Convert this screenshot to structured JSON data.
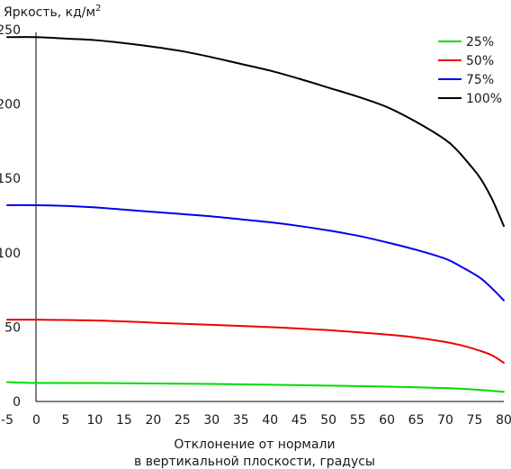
{
  "chart_data": {
    "type": "line",
    "ylabel": "Яркость, кд/м",
    "ylabel_superscript": "2",
    "xlabel_line1": "Отклонение от нормали",
    "xlabel_line2": "в вертикальной плоскости, градусы",
    "xlim": [
      -5,
      80
    ],
    "ylim": [
      0,
      250
    ],
    "x_ticks": [
      -5,
      0,
      5,
      10,
      15,
      20,
      25,
      30,
      35,
      40,
      45,
      50,
      55,
      60,
      65,
      70,
      75,
      80
    ],
    "y_ticks": [
      0,
      50,
      100,
      150,
      200,
      250
    ],
    "grid": false,
    "legend_position": "top-right",
    "series": [
      {
        "name": "25%",
        "color": "#00dd00",
        "x": [
          -5,
          0,
          10,
          20,
          30,
          40,
          50,
          60,
          70,
          75,
          80
        ],
        "y": [
          13,
          12.5,
          12.4,
          12.1,
          11.8,
          11.3,
          10.7,
          10,
          9,
          8,
          6.5
        ]
      },
      {
        "name": "50%",
        "color": "#ee0000",
        "x": [
          -5,
          0,
          10,
          20,
          30,
          40,
          45,
          50,
          55,
          60,
          65,
          70,
          73,
          76,
          78,
          80
        ],
        "y": [
          55,
          55,
          54.5,
          53,
          51.5,
          50,
          49,
          48,
          46.5,
          45,
          43,
          40,
          37.5,
          34,
          31,
          26
        ]
      },
      {
        "name": "75%",
        "color": "#0000ee",
        "x": [
          -5,
          0,
          5,
          10,
          15,
          20,
          25,
          30,
          35,
          40,
          45,
          50,
          55,
          60,
          65,
          70,
          73,
          76,
          78,
          80
        ],
        "y": [
          132,
          132,
          131.5,
          130.5,
          129,
          127.5,
          126,
          124.5,
          122.5,
          120.5,
          118,
          115,
          111.5,
          107,
          102,
          96,
          90,
          83,
          76,
          68
        ]
      },
      {
        "name": "100%",
        "color": "#000000",
        "x": [
          -5,
          0,
          5,
          10,
          15,
          20,
          25,
          30,
          35,
          40,
          45,
          50,
          55,
          60,
          65,
          70,
          72,
          74,
          76,
          78,
          80
        ],
        "y": [
          245,
          245,
          244,
          243,
          241,
          238.5,
          235.5,
          231.5,
          227,
          222.5,
          217,
          211,
          205,
          198,
          188,
          176,
          169,
          160,
          150,
          136,
          118
        ]
      }
    ]
  }
}
